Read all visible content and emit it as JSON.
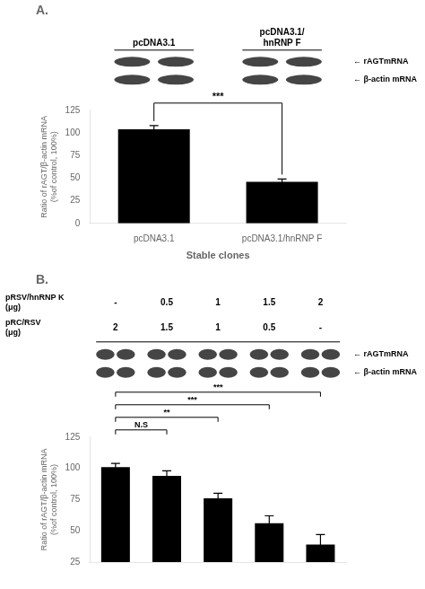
{
  "chart_data": [
    {
      "type": "bar",
      "title": "A.",
      "categories": [
        "pcDNA3.1",
        "pcDNA3.1/hnRNP F"
      ],
      "values": [
        104,
        46
      ],
      "errors": [
        4,
        3
      ],
      "color": "black",
      "xlabel": "Stable clones",
      "ylabel": "Ratio of rAGT/β-actin mRNA\n(%of control, 100%)",
      "ylim": [
        0,
        125
      ],
      "yticks": [
        0,
        25,
        50,
        75,
        100,
        125
      ],
      "grid": false,
      "annotations": [
        {
          "text": "***",
          "between": [
            0,
            1
          ]
        }
      ],
      "blot_group_labels": [
        "pcDNA3.1",
        "pcDNA3.1/\nhnRNP F"
      ],
      "blot_row_labels": [
        "← rAGTmRNA",
        "← β-actin mRNA"
      ]
    },
    {
      "type": "bar",
      "title": "B.",
      "categories": [
        null,
        null,
        null,
        null,
        null
      ],
      "values": [
        101,
        94,
        76,
        56,
        39
      ],
      "errors": [
        3,
        4,
        4,
        6,
        8
      ],
      "color": "black",
      "ylabel": "Ratio of rAGT/β-actin mRNA\n(%of control, 100%)",
      "ylim": [
        25,
        125
      ],
      "yticks": [
        25,
        50,
        75,
        100,
        125
      ],
      "grid": false,
      "annotations": [
        {
          "text": "N.S",
          "between": [
            0,
            1
          ]
        },
        {
          "text": "**",
          "between": [
            0,
            2
          ]
        },
        {
          "text": "***",
          "between": [
            0,
            3
          ]
        },
        {
          "text": "***",
          "between": [
            0,
            4
          ]
        }
      ],
      "table": [
        {
          "label": "pRSV/hnRNP K\n(μg)",
          "values": [
            "-",
            "0.5",
            "1",
            "1.5",
            "2"
          ]
        },
        {
          "label": "pRC/RSV\n(μg)",
          "values": [
            "2",
            "1.5",
            "1",
            "0.5",
            "-"
          ]
        }
      ],
      "blot_row_labels": [
        "← rAGTmRNA",
        "← β-actin mRNA"
      ]
    }
  ]
}
